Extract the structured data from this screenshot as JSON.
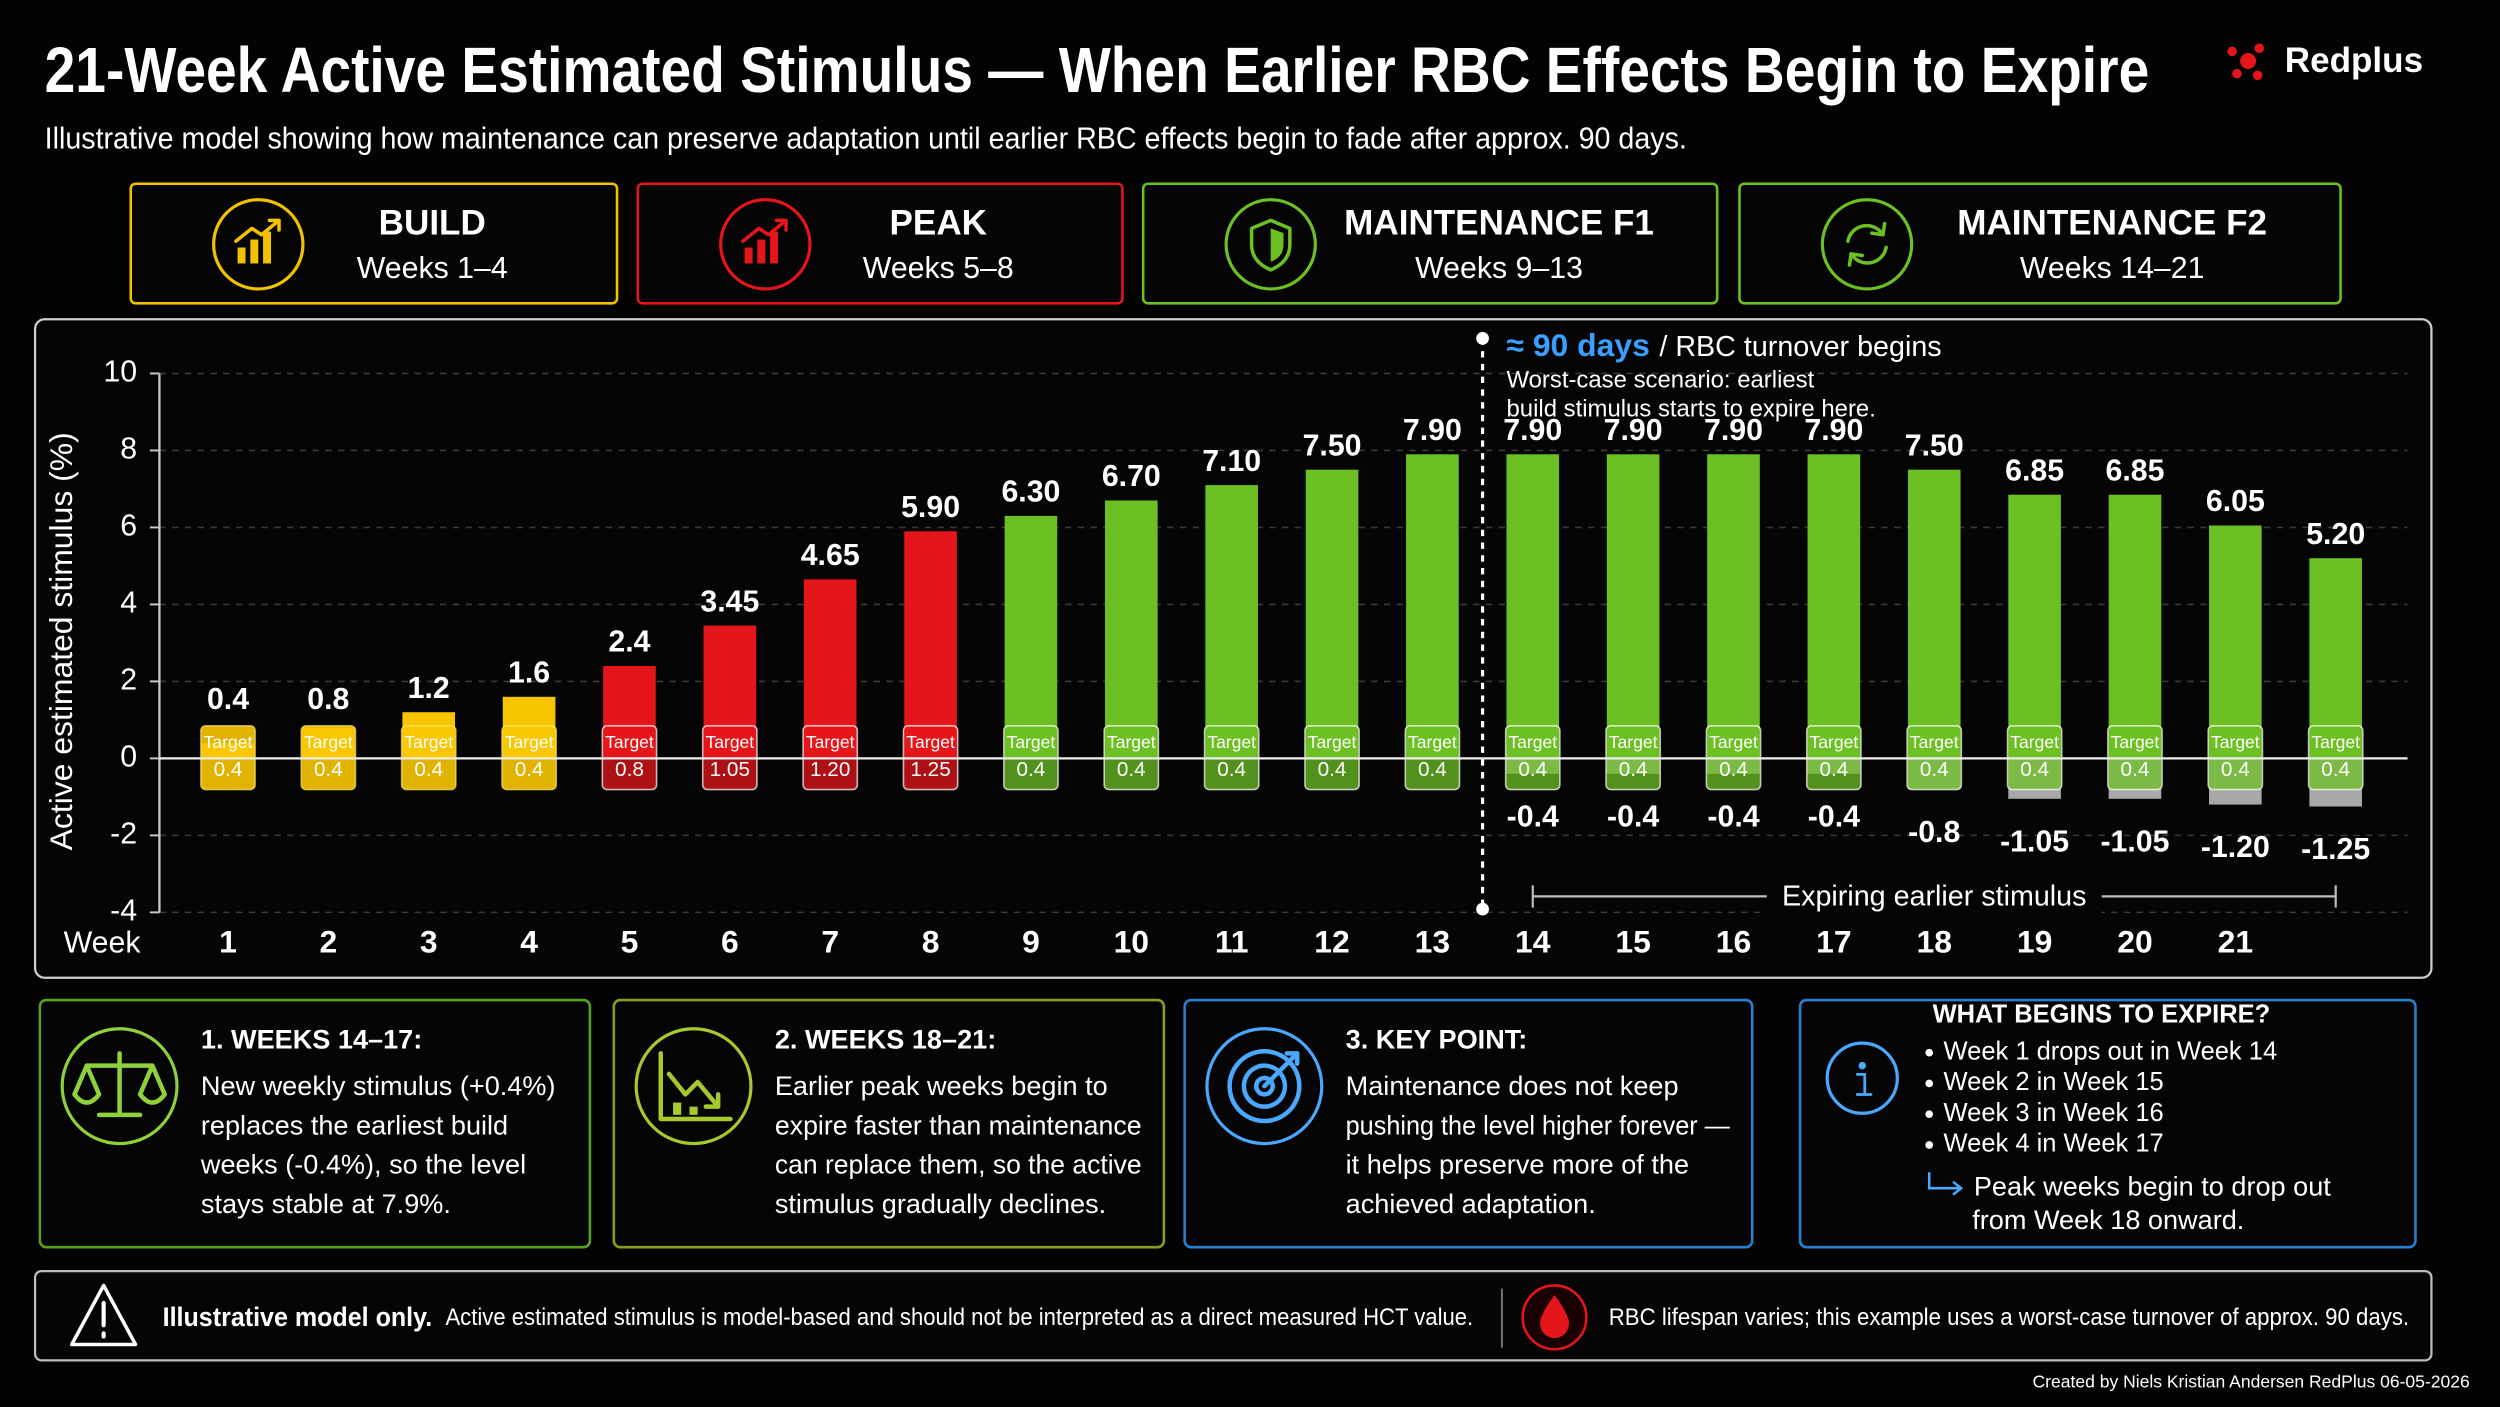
{
  "header": {
    "title": "21-Week Active Estimated Stimulus — When Earlier RBC Effects Begin to Expire",
    "subtitle": "Illustrative model showing how maintenance can preserve adaptation until earlier RBC effects begin to fade after approx. 90 days.",
    "logo": "Redplus"
  },
  "phases": [
    {
      "title": "BUILD",
      "weeks": "Weeks 1–4",
      "color": "#f2c200"
    },
    {
      "title": "PEAK",
      "weeks": "Weeks 5–8",
      "color": "#e5161b"
    },
    {
      "title": "MAINTENANCE F1",
      "weeks": "Weeks 9–13",
      "color": "#6cc024"
    },
    {
      "title": "MAINTENANCE F2",
      "weeks": "Weeks 14–21",
      "color": "#6cc024"
    }
  ],
  "chart_data": {
    "type": "bar",
    "y_label": "Active estimated stimulus (%)",
    "x_label": "Week",
    "categories": [
      "1",
      "2",
      "3",
      "4",
      "5",
      "6",
      "7",
      "8",
      "9",
      "10",
      "11",
      "12",
      "13",
      "14",
      "15",
      "16",
      "17",
      "18",
      "19",
      "20",
      "21",
      null
    ],
    "series": [
      {
        "colors": [
          "#f7c600",
          "#f7c600",
          "#f7c600",
          "#f7c600",
          "#e5161b",
          "#e5161b",
          "#e5161b",
          "#e5161b",
          "#6cc024",
          "#6cc024",
          "#6cc024",
          "#6cc024",
          "#6cc024",
          "#6cc024",
          "#6cc024",
          "#6cc024",
          "#6cc024",
          "#6cc024",
          "#6cc024",
          "#6cc024",
          "#6cc024",
          "#6cc024"
        ],
        "values": [
          0.4,
          0.8,
          1.2,
          1.6,
          2.4,
          3.45,
          4.65,
          5.9,
          6.3,
          6.7,
          7.1,
          7.5,
          7.9,
          7.9,
          7.9,
          7.9,
          7.9,
          7.5,
          6.85,
          6.85,
          6.05,
          5.2
        ],
        "value_labels": [
          "0.4",
          "0.8",
          "1.2",
          "1.6",
          "2.4",
          "3.45",
          "4.65",
          "5.90",
          "6.30",
          "6.70",
          "7.10",
          "7.50",
          "7.90",
          "7.90",
          "7.90",
          "7.90",
          "7.90",
          "7.50",
          "6.85",
          "6.85",
          "6.05",
          "5.20"
        ]
      },
      {
        "color": "#a8a8a8",
        "values": [
          null,
          null,
          null,
          null,
          null,
          null,
          null,
          null,
          null,
          null,
          null,
          null,
          null,
          -0.4,
          -0.4,
          -0.4,
          -0.4,
          -0.8,
          -1.05,
          -1.05,
          -1.2,
          -1.25
        ],
        "value_labels": [
          null,
          null,
          null,
          null,
          null,
          null,
          null,
          null,
          null,
          null,
          null,
          null,
          null,
          "-0.4",
          "-0.4",
          "-0.4",
          "-0.4",
          "-0.8",
          "-1.05",
          "-1.05",
          "-1.20",
          "-1.25"
        ]
      }
    ],
    "target_label": "Target",
    "target_values": [
      "0.4",
      "0.4",
      "0.4",
      "0.4",
      "0.8",
      "1.05",
      "1.20",
      "1.25",
      "0.4",
      "0.4",
      "0.4",
      "0.4",
      "0.4",
      "0.4",
      "0.4",
      "0.4",
      "0.4",
      "0.4",
      "0.4",
      "0.4",
      "0.4",
      "0.4"
    ],
    "ylim": [
      -4,
      10
    ],
    "yticks": [
      -4,
      -2,
      0,
      2,
      4,
      6,
      8,
      10
    ],
    "grid": true,
    "annotation": {
      "highlight": "≈ 90 days",
      "headline": "/ RBC turnover begins",
      "lines": [
        "Worst-case scenario: earliest",
        "build stimulus starts to expire here."
      ],
      "bracket": "Expiring earlier stimulus"
    }
  },
  "panels": [
    {
      "title": "1. WEEKS 14–17:",
      "color": "#8fd13a",
      "lines": [
        "New weekly stimulus (+0.4%)",
        "replaces the earliest build",
        "weeks (-0.4%), so the level",
        "stays stable at 7.9%."
      ]
    },
    {
      "title": "2. WEEKS 18–21:",
      "color": "#a6c92c",
      "lines": [
        "Earlier peak weeks begin to",
        "expire faster than maintenance",
        "can replace them, so the active",
        "stimulus gradually declines."
      ]
    },
    {
      "title": "3. KEY POINT:",
      "color": "#4aa8ff",
      "lines": [
        "Maintenance does not keep",
        "pushing the level higher forever —",
        "it helps preserve more of the",
        "achieved adaptation."
      ]
    }
  ],
  "expire_box": {
    "title": "WHAT BEGINS TO EXPIRE?",
    "items": [
      "Week 1 drops out in Week 14",
      "Week 2 in Week 15",
      "Week 3 in Week 16",
      "Week 4 in Week 17"
    ],
    "note": [
      "Peak weeks begin to drop out",
      "from Week 18 onward."
    ]
  },
  "footer": {
    "bold": "Illustrative model only.",
    "text": "Active estimated stimulus is model-based and should not be interpreted as a direct measured HCT value.",
    "note": "RBC lifespan varies; this example uses a worst-case turnover of approx. 90 days."
  },
  "credit": "Created by Niels Kristian Andersen RedPlus 06-05-2026"
}
